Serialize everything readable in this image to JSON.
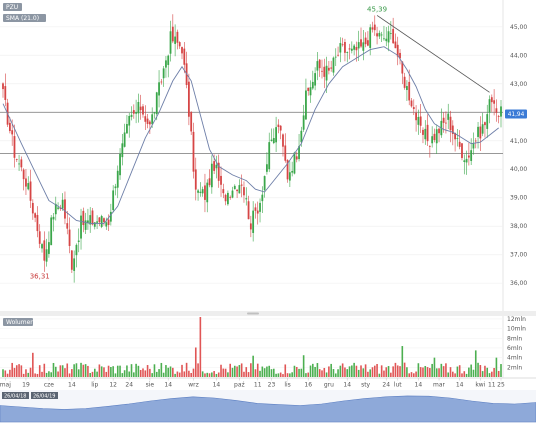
{
  "chart_data": [
    {
      "type": "candlestick",
      "instrument_tag": "PZU",
      "indicator_tag": "SMA (21.0)",
      "ylim": [
        35.2,
        45.8
      ],
      "y_ticks": [
        {
          "value": 45,
          "label": "45,00"
        },
        {
          "value": 44,
          "label": "44,00"
        },
        {
          "value": 43,
          "label": "43,00"
        },
        {
          "value": 42,
          "label": "42,00"
        },
        {
          "value": 41,
          "label": "41,00"
        },
        {
          "value": 40,
          "label": "40,00"
        },
        {
          "value": 39,
          "label": "39,00"
        },
        {
          "value": 38,
          "label": "38,00"
        },
        {
          "value": 37,
          "label": "37,00"
        },
        {
          "value": 36,
          "label": "36,00"
        }
      ],
      "last_price": {
        "value": 41.94,
        "label": "41,94"
      },
      "annotations": [
        {
          "label": "45,39",
          "value": 45.39,
          "kind": "max"
        },
        {
          "label": "36,31",
          "value": 36.31,
          "kind": "min"
        }
      ],
      "horizontal_lines": [
        42.0,
        40.55
      ],
      "trendline": [
        {
          "i": 163,
          "v": 45.4
        },
        {
          "i": 212,
          "v": 42.7
        }
      ],
      "price_path": [
        {
          "i": 0,
          "v": 42.6
        },
        {
          "i": 5,
          "v": 40.6
        },
        {
          "i": 10,
          "v": 39.6
        },
        {
          "i": 14,
          "v": 38.3
        },
        {
          "i": 18,
          "v": 36.9
        },
        {
          "i": 22,
          "v": 38.5
        },
        {
          "i": 26,
          "v": 38.9
        },
        {
          "i": 30,
          "v": 36.7
        },
        {
          "i": 34,
          "v": 38.1
        },
        {
          "i": 40,
          "v": 38.2
        },
        {
          "i": 46,
          "v": 38.2
        },
        {
          "i": 50,
          "v": 40.1
        },
        {
          "i": 55,
          "v": 41.7
        },
        {
          "i": 60,
          "v": 42.2
        },
        {
          "i": 64,
          "v": 41.5
        },
        {
          "i": 68,
          "v": 42.8
        },
        {
          "i": 73,
          "v": 44.6
        },
        {
          "i": 78,
          "v": 44.3
        },
        {
          "i": 81,
          "v": 42.0
        },
        {
          "i": 84,
          "v": 39.2
        },
        {
          "i": 88,
          "v": 39.1
        },
        {
          "i": 92,
          "v": 40.2
        },
        {
          "i": 96,
          "v": 39.0
        },
        {
          "i": 100,
          "v": 39.4
        },
        {
          "i": 104,
          "v": 39.6
        },
        {
          "i": 108,
          "v": 38.1
        },
        {
          "i": 112,
          "v": 38.9
        },
        {
          "i": 116,
          "v": 40.7
        },
        {
          "i": 120,
          "v": 41.6
        },
        {
          "i": 124,
          "v": 39.8
        },
        {
          "i": 128,
          "v": 40.6
        },
        {
          "i": 132,
          "v": 42.5
        },
        {
          "i": 137,
          "v": 43.6
        },
        {
          "i": 142,
          "v": 43.4
        },
        {
          "i": 147,
          "v": 44.2
        },
        {
          "i": 152,
          "v": 44.1
        },
        {
          "i": 157,
          "v": 44.3
        },
        {
          "i": 161,
          "v": 44.9
        },
        {
          "i": 165,
          "v": 44.6
        },
        {
          "i": 170,
          "v": 44.7
        },
        {
          "i": 174,
          "v": 43.3
        },
        {
          "i": 178,
          "v": 42.4
        },
        {
          "i": 182,
          "v": 41.3
        },
        {
          "i": 186,
          "v": 41.0
        },
        {
          "i": 190,
          "v": 41.4
        },
        {
          "i": 194,
          "v": 41.8
        },
        {
          "i": 198,
          "v": 40.9
        },
        {
          "i": 202,
          "v": 40.4
        },
        {
          "i": 206,
          "v": 41.1
        },
        {
          "i": 210,
          "v": 41.6
        },
        {
          "i": 213,
          "v": 42.6
        },
        {
          "i": 216,
          "v": 41.94
        }
      ],
      "sma_path": [
        {
          "i": 0,
          "v": 42.3
        },
        {
          "i": 8,
          "v": 40.9
        },
        {
          "i": 14,
          "v": 39.9
        },
        {
          "i": 20,
          "v": 38.9
        },
        {
          "i": 26,
          "v": 38.6
        },
        {
          "i": 32,
          "v": 38.2
        },
        {
          "i": 38,
          "v": 38.1
        },
        {
          "i": 44,
          "v": 38.1
        },
        {
          "i": 50,
          "v": 38.7
        },
        {
          "i": 56,
          "v": 39.9
        },
        {
          "i": 62,
          "v": 41.1
        },
        {
          "i": 68,
          "v": 42.0
        },
        {
          "i": 74,
          "v": 43.1
        },
        {
          "i": 78,
          "v": 43.6
        },
        {
          "i": 82,
          "v": 43.1
        },
        {
          "i": 86,
          "v": 41.9
        },
        {
          "i": 90,
          "v": 40.7
        },
        {
          "i": 94,
          "v": 40.1
        },
        {
          "i": 100,
          "v": 39.8
        },
        {
          "i": 106,
          "v": 39.6
        },
        {
          "i": 110,
          "v": 39.3
        },
        {
          "i": 114,
          "v": 39.2
        },
        {
          "i": 118,
          "v": 39.6
        },
        {
          "i": 124,
          "v": 40.2
        },
        {
          "i": 130,
          "v": 40.9
        },
        {
          "i": 136,
          "v": 42.1
        },
        {
          "i": 142,
          "v": 43.0
        },
        {
          "i": 148,
          "v": 43.6
        },
        {
          "i": 154,
          "v": 43.9
        },
        {
          "i": 160,
          "v": 44.2
        },
        {
          "i": 166,
          "v": 44.3
        },
        {
          "i": 172,
          "v": 44.0
        },
        {
          "i": 176,
          "v": 43.5
        },
        {
          "i": 180,
          "v": 42.9
        },
        {
          "i": 184,
          "v": 42.1
        },
        {
          "i": 188,
          "v": 41.6
        },
        {
          "i": 192,
          "v": 41.4
        },
        {
          "i": 196,
          "v": 41.3
        },
        {
          "i": 200,
          "v": 41.1
        },
        {
          "i": 204,
          "v": 40.9
        },
        {
          "i": 208,
          "v": 40.95
        },
        {
          "i": 212,
          "v": 41.2
        },
        {
          "i": 216,
          "v": 41.45
        }
      ],
      "x_ticks": [
        {
          "i": 1,
          "label": "maj"
        },
        {
          "i": 10,
          "label": "19"
        },
        {
          "i": 20,
          "label": "cze"
        },
        {
          "i": 30,
          "label": "14"
        },
        {
          "i": 40,
          "label": "lip"
        },
        {
          "i": 48,
          "label": "12"
        },
        {
          "i": 55,
          "label": "24"
        },
        {
          "i": 64,
          "label": "sie"
        },
        {
          "i": 72,
          "label": "14"
        },
        {
          "i": 83,
          "label": "wrz"
        },
        {
          "i": 93,
          "label": "14"
        },
        {
          "i": 103,
          "label": "paź"
        },
        {
          "i": 111,
          "label": "11"
        },
        {
          "i": 117,
          "label": "23"
        },
        {
          "i": 124,
          "label": "lis"
        },
        {
          "i": 133,
          "label": "16"
        },
        {
          "i": 142,
          "label": "gru"
        },
        {
          "i": 150,
          "label": "14"
        },
        {
          "i": 158,
          "label": "sty"
        },
        {
          "i": 167,
          "label": "24"
        },
        {
          "i": 172,
          "label": "lut"
        },
        {
          "i": 181,
          "label": "14"
        },
        {
          "i": 190,
          "label": "mar"
        },
        {
          "i": 199,
          "label": "14"
        },
        {
          "i": 208,
          "label": "kwi"
        },
        {
          "i": 213,
          "label": "11"
        },
        {
          "i": 217,
          "label": "25"
        }
      ]
    },
    {
      "type": "bar",
      "panel_tag": "Wolumen",
      "ylim": [
        0,
        12.4
      ],
      "y_ticks": [
        {
          "value": 12,
          "label": "12mln"
        },
        {
          "value": 10,
          "label": "10mln"
        },
        {
          "value": 8,
          "label": "8mln"
        },
        {
          "value": 6,
          "label": "6mln"
        },
        {
          "value": 4,
          "label": "4mln"
        },
        {
          "value": 2,
          "label": "2mln"
        }
      ],
      "spikes": [
        {
          "i": 86,
          "v": 12.4,
          "dir": "down"
        },
        {
          "i": 13,
          "v": 5.0,
          "dir": "down"
        },
        {
          "i": 84,
          "v": 6.1,
          "dir": "down"
        },
        {
          "i": 109,
          "v": 4.4,
          "dir": "up"
        },
        {
          "i": 131,
          "v": 4.5,
          "dir": "up"
        },
        {
          "i": 174,
          "v": 6.4,
          "dir": "up"
        },
        {
          "i": 188,
          "v": 4.0,
          "dir": "up"
        },
        {
          "i": 206,
          "v": 5.5,
          "dir": "up"
        },
        {
          "i": 215,
          "v": 4.0,
          "dir": "up"
        }
      ]
    },
    {
      "type": "area",
      "navigator_start_label": "26/04/18",
      "navigator_end_label": "26/04/19",
      "values": [
        0.55,
        0.5,
        0.45,
        0.42,
        0.45,
        0.52,
        0.6,
        0.7,
        0.78,
        0.84,
        0.8,
        0.72,
        0.62,
        0.58,
        0.55,
        0.6,
        0.7,
        0.78,
        0.84,
        0.87,
        0.86,
        0.8,
        0.7,
        0.62,
        0.6,
        0.65
      ]
    }
  ]
}
